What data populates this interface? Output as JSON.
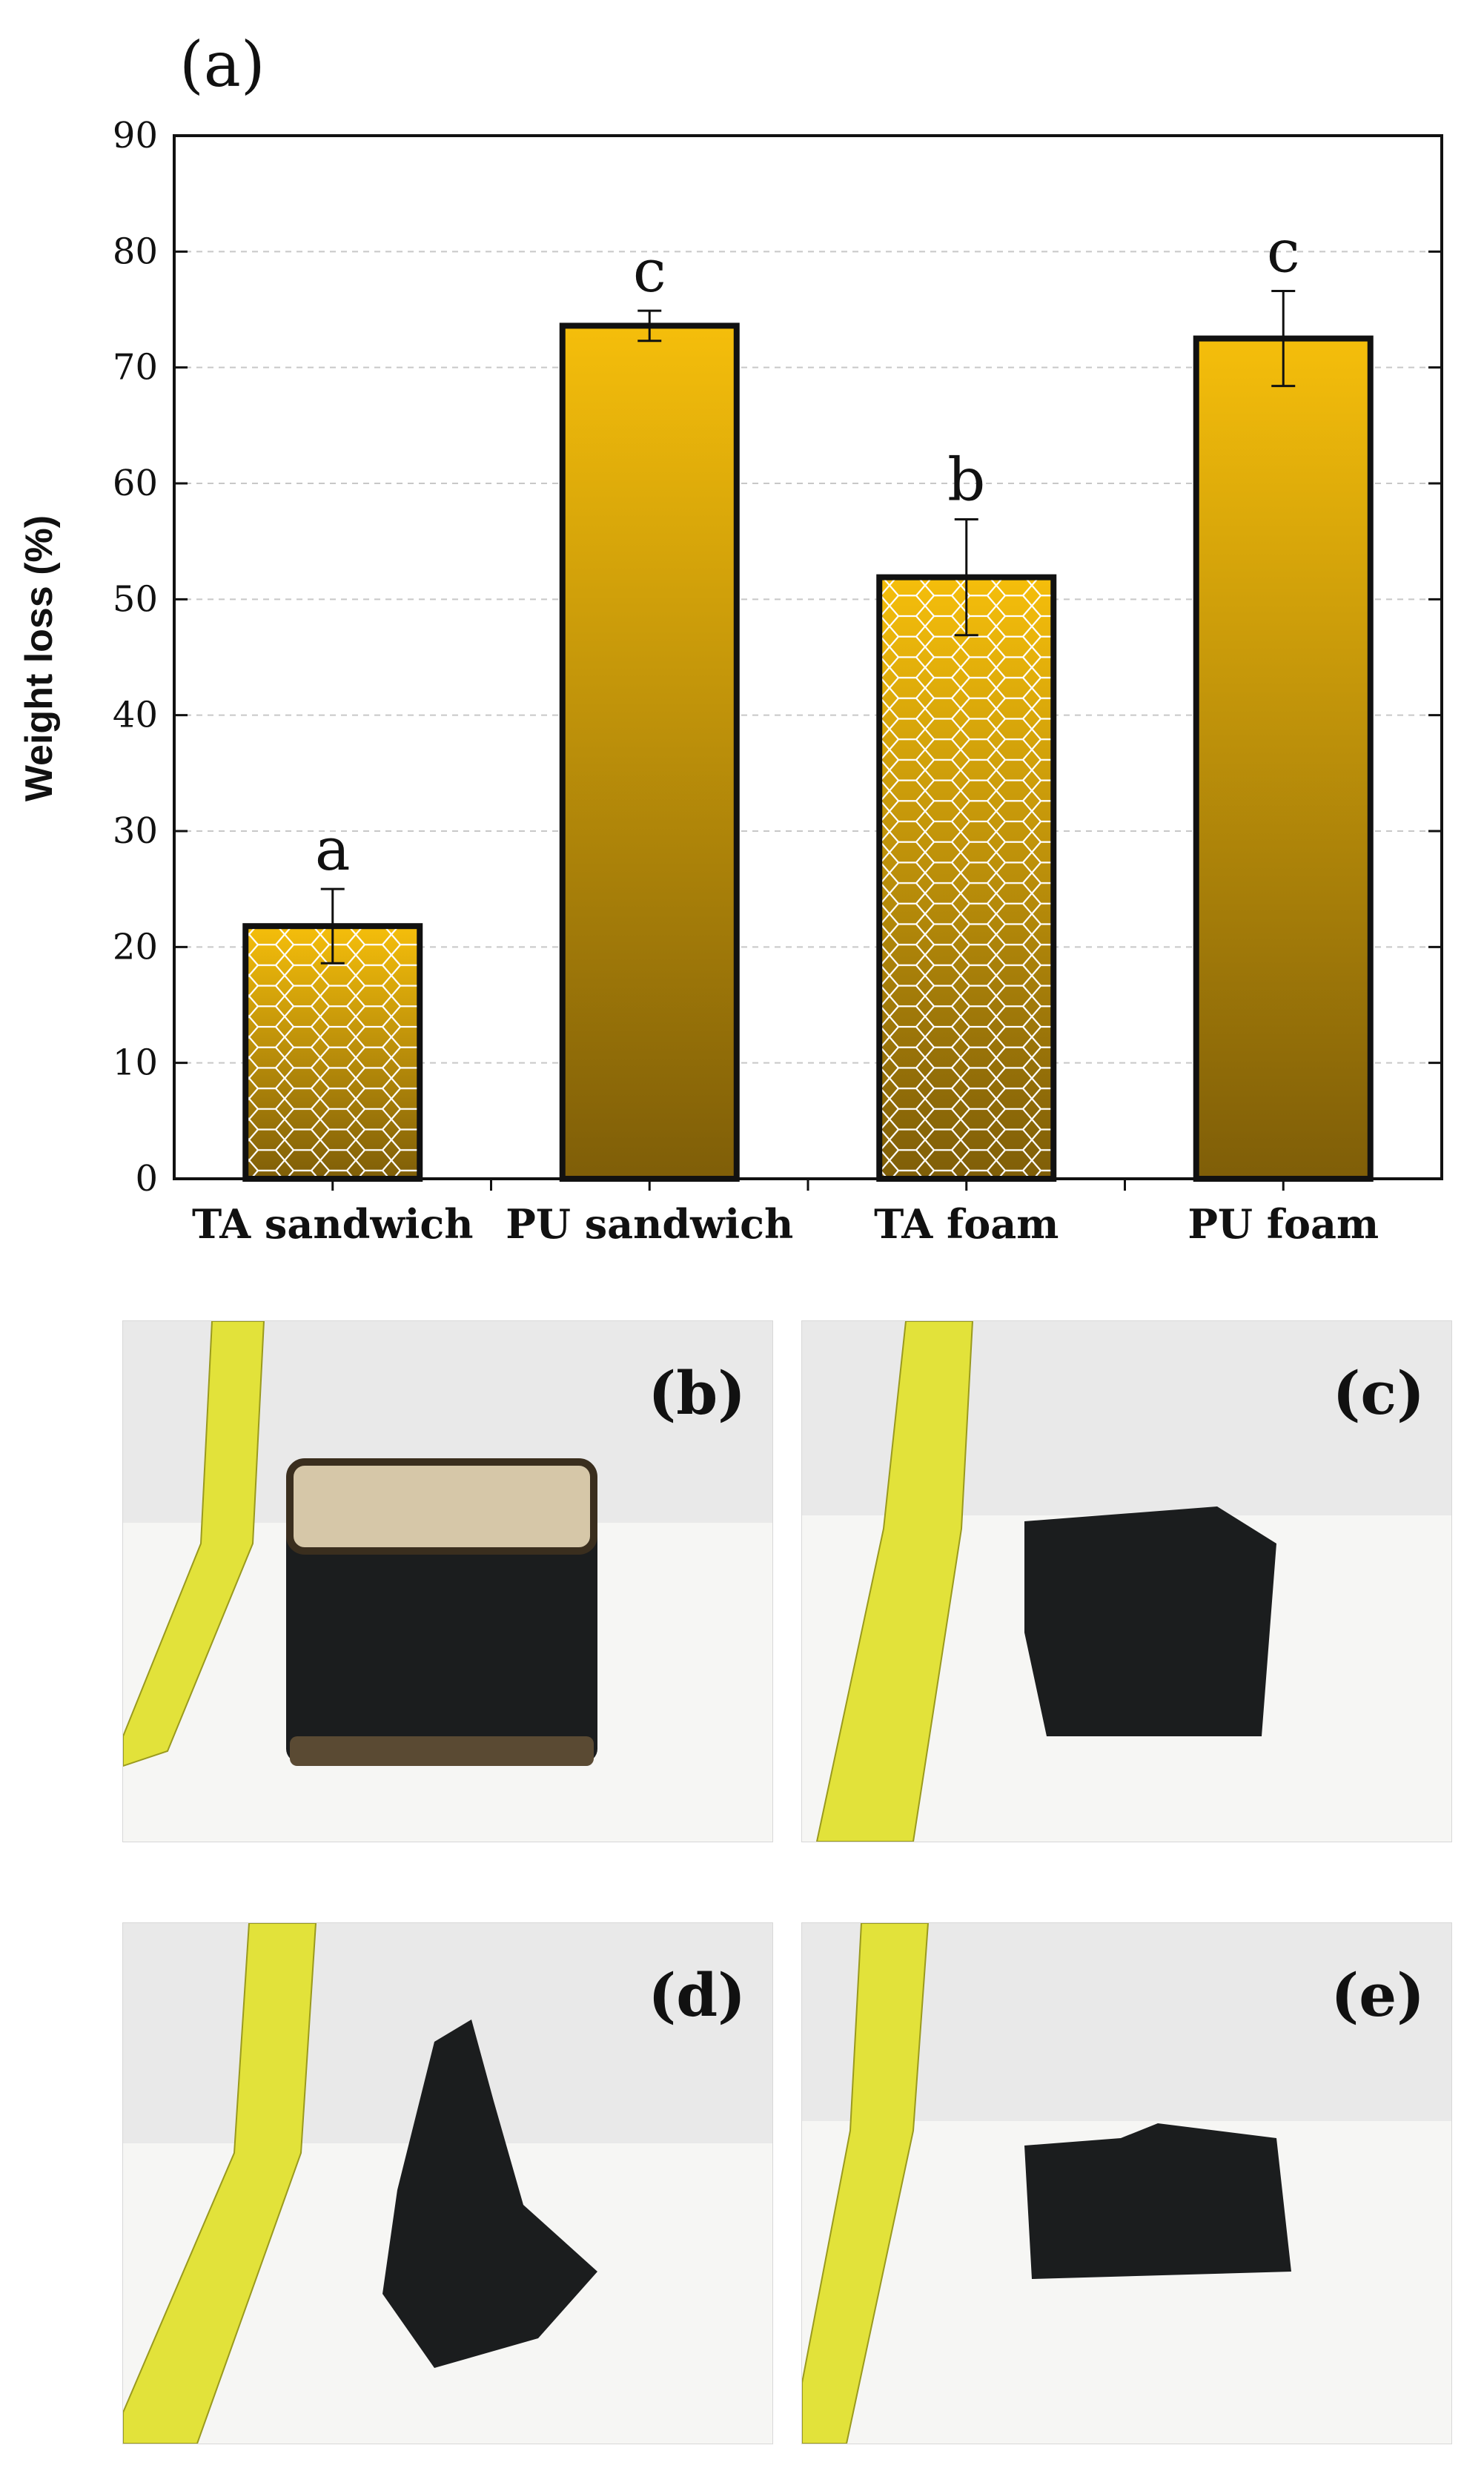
{
  "panels": {
    "a": "(a)",
    "b": "(b)",
    "c": "(c)",
    "d": "(d)",
    "e": "(e)"
  },
  "chart_data": {
    "type": "bar",
    "categories": [
      "TA sandwich",
      "PU sandwich",
      "TA foam",
      "PU foam"
    ],
    "values": [
      21.8,
      73.6,
      51.9,
      72.5
    ],
    "errors": [
      3.2,
      1.3,
      5.0,
      4.1
    ],
    "group_letters": [
      "a",
      "c",
      "b",
      "c"
    ],
    "hatched": [
      true,
      false,
      true,
      false
    ],
    "title": "",
    "xlabel": "",
    "ylabel": "Weight loss (%)",
    "ylim": [
      0,
      90
    ],
    "yticks": [
      0,
      10,
      20,
      30,
      40,
      50,
      60,
      70,
      80,
      90
    ],
    "grid": true,
    "colors": {
      "bar_top": "#F5BE0B",
      "bar_bottom": "#7F5E08",
      "hatch": "#FFFFFF",
      "edge": "#111111",
      "grid": "#C8C8C8"
    }
  },
  "photo_colors": {
    "wall": "#E9E9E9",
    "floor": "#F6F6F4",
    "tape": "#E2E23A",
    "char": "#1B1D1E",
    "panel_tan": "#D6C7A8"
  }
}
